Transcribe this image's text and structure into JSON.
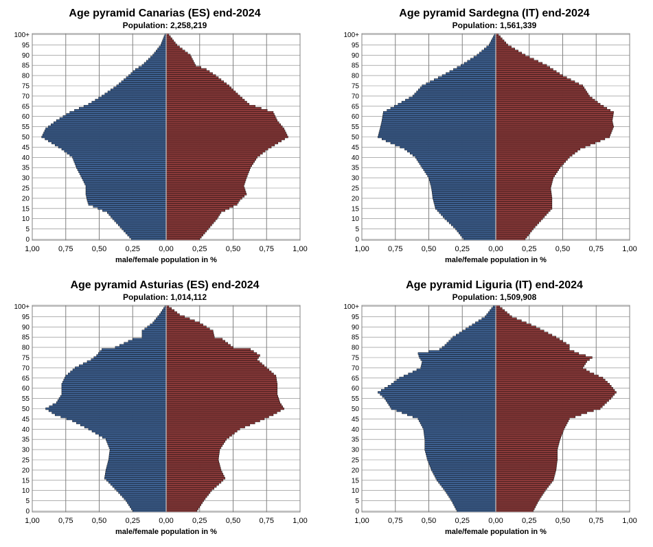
{
  "charts": [
    {
      "title": "Age pyramid Canarias (ES) end-2024",
      "subtitle": "Population: 2,258,219"
    },
    {
      "title": "Age pyramid Sardegna (IT) end-2024",
      "subtitle": "Population: 1,561,339"
    },
    {
      "title": "Age pyramid Asturias (ES) end-2024",
      "subtitle": "Population: 1,014,112"
    },
    {
      "title": "Age pyramid Liguria (IT) end-2024",
      "subtitle": "Population: 1,509,908"
    }
  ],
  "colors": {
    "male": "#3d5f8f",
    "female": "#8b3a3a",
    "grid": "#808080",
    "axis": "#000000"
  },
  "chart_data": [
    {
      "type": "bar",
      "region": "Canarias (ES)",
      "title": "Age pyramid Canarias (ES) end-2024",
      "subtitle": "Population: 2,258,219",
      "xlabel": "male/female population  in %",
      "xlim": [
        -1.0,
        1.0
      ],
      "x_ticks": [
        "1,00",
        "0,75",
        "0,50",
        "0,25",
        "0,00",
        "0,25",
        "0,50",
        "0,75",
        "1,00"
      ],
      "y_ticks": [
        "0",
        "5",
        "10",
        "15",
        "20",
        "25",
        "30",
        "35",
        "40",
        "45",
        "50",
        "55",
        "60",
        "65",
        "70",
        "75",
        "80",
        "85",
        "90",
        "95",
        "100+"
      ],
      "grid": true,
      "age_key_points": [
        0,
        10,
        13,
        17,
        19,
        22,
        26,
        30,
        35,
        40,
        44,
        50,
        54,
        58,
        62,
        66,
        70,
        75,
        80,
        83,
        85,
        90,
        95,
        100
      ],
      "male_key_values": [
        0.26,
        0.4,
        0.44,
        0.58,
        0.59,
        0.6,
        0.6,
        0.63,
        0.67,
        0.7,
        0.78,
        0.93,
        0.9,
        0.82,
        0.72,
        0.58,
        0.48,
        0.37,
        0.28,
        0.23,
        0.18,
        0.1,
        0.04,
        0.01
      ],
      "female_key_values": [
        0.25,
        0.38,
        0.41,
        0.53,
        0.55,
        0.6,
        0.58,
        0.6,
        0.63,
        0.68,
        0.76,
        0.91,
        0.88,
        0.83,
        0.8,
        0.62,
        0.55,
        0.47,
        0.37,
        0.3,
        0.22,
        0.18,
        0.08,
        0.02
      ]
    },
    {
      "type": "bar",
      "region": "Sardegna (IT)",
      "title": "Age pyramid Sardegna (IT) end-2024",
      "subtitle": "Population: 1,561,339",
      "xlabel": "male/female population  in %",
      "xlim": [
        -1.0,
        1.0
      ],
      "x_ticks": [
        "1,00",
        "0,75",
        "0,50",
        "0,25",
        "0,00",
        "0,25",
        "0,50",
        "0,75",
        "1,00"
      ],
      "y_ticks": [
        "0",
        "5",
        "10",
        "15",
        "20",
        "25",
        "30",
        "35",
        "40",
        "45",
        "50",
        "55",
        "60",
        "65",
        "70",
        "75",
        "80",
        "85",
        "90",
        "95",
        "100+"
      ],
      "grid": true,
      "age_key_points": [
        0,
        5,
        10,
        15,
        20,
        25,
        30,
        35,
        40,
        44,
        48,
        50,
        55,
        58,
        62,
        66,
        70,
        75,
        80,
        85,
        90,
        95,
        100
      ],
      "male_key_values": [
        0.24,
        0.3,
        0.38,
        0.45,
        0.47,
        0.48,
        0.5,
        0.55,
        0.6,
        0.68,
        0.82,
        0.88,
        0.86,
        0.85,
        0.84,
        0.73,
        0.62,
        0.55,
        0.4,
        0.26,
        0.14,
        0.05,
        0.01
      ],
      "female_key_values": [
        0.22,
        0.28,
        0.35,
        0.42,
        0.42,
        0.41,
        0.43,
        0.48,
        0.55,
        0.63,
        0.78,
        0.85,
        0.88,
        0.87,
        0.88,
        0.78,
        0.7,
        0.65,
        0.5,
        0.38,
        0.22,
        0.09,
        0.02
      ]
    },
    {
      "type": "bar",
      "region": "Asturias (ES)",
      "title": "Age pyramid Asturias (ES) end-2024",
      "subtitle": "Population: 1,014,112",
      "xlabel": "male/female population  in %",
      "xlim": [
        -1.0,
        1.0
      ],
      "x_ticks": [
        "1,00",
        "0,75",
        "0,50",
        "0,25",
        "0,00",
        "0,25",
        "0,50",
        "0,75",
        "1,00"
      ],
      "y_ticks": [
        "0",
        "5",
        "10",
        "15",
        "20",
        "25",
        "30",
        "35",
        "40",
        "45",
        "50",
        "55",
        "60",
        "65",
        "70",
        "75",
        "80",
        "85",
        "90",
        "95",
        "100+"
      ],
      "grid": true,
      "age_key_points": [
        0,
        5,
        10,
        14,
        16,
        20,
        25,
        30,
        35,
        40,
        44,
        47,
        50,
        53,
        57,
        62,
        66,
        70,
        74,
        76,
        79,
        80,
        84,
        85,
        88,
        92,
        96,
        100
      ],
      "male_key_values": [
        0.25,
        0.3,
        0.37,
        0.43,
        0.46,
        0.45,
        0.43,
        0.42,
        0.45,
        0.58,
        0.7,
        0.83,
        0.9,
        0.82,
        0.78,
        0.78,
        0.75,
        0.68,
        0.56,
        0.52,
        0.48,
        0.38,
        0.25,
        0.18,
        0.18,
        0.1,
        0.05,
        0.01
      ],
      "female_key_values": [
        0.23,
        0.28,
        0.34,
        0.41,
        0.44,
        0.41,
        0.39,
        0.4,
        0.45,
        0.55,
        0.7,
        0.8,
        0.88,
        0.85,
        0.83,
        0.83,
        0.82,
        0.75,
        0.68,
        0.7,
        0.63,
        0.5,
        0.42,
        0.36,
        0.35,
        0.25,
        0.1,
        0.02
      ]
    },
    {
      "type": "bar",
      "region": "Liguria (IT)",
      "title": "Age pyramid Liguria (IT) end-2024",
      "subtitle": "Population: 1,509,908",
      "xlabel": "male/female population  in %",
      "xlim": [
        -1.0,
        1.0
      ],
      "x_ticks": [
        "1,00",
        "0,75",
        "0,50",
        "0,25",
        "0,00",
        "0,25",
        "0,50",
        "0,75",
        "1,00"
      ],
      "y_ticks": [
        "0",
        "5",
        "10",
        "15",
        "20",
        "25",
        "30",
        "35",
        "40",
        "45",
        "50",
        "55",
        "60",
        "65",
        "70",
        "75",
        "80",
        "85",
        "90",
        "95",
        "100+"
      ],
      "grid": true,
      "age_key_points": [
        0,
        5,
        10,
        15,
        20,
        25,
        30,
        35,
        40,
        45,
        48,
        50,
        55,
        58,
        62,
        65,
        68,
        70,
        73,
        75,
        77,
        79,
        81,
        85,
        90,
        95,
        100
      ],
      "male_key_values": [
        0.29,
        0.33,
        0.38,
        0.44,
        0.48,
        0.51,
        0.53,
        0.53,
        0.54,
        0.58,
        0.7,
        0.78,
        0.83,
        0.88,
        0.78,
        0.72,
        0.62,
        0.56,
        0.55,
        0.57,
        0.58,
        0.42,
        0.38,
        0.32,
        0.2,
        0.08,
        0.02
      ],
      "female_key_values": [
        0.28,
        0.32,
        0.37,
        0.43,
        0.45,
        0.46,
        0.46,
        0.48,
        0.51,
        0.55,
        0.68,
        0.78,
        0.86,
        0.9,
        0.85,
        0.8,
        0.7,
        0.65,
        0.68,
        0.72,
        0.62,
        0.55,
        0.55,
        0.45,
        0.3,
        0.12,
        0.03
      ]
    }
  ]
}
